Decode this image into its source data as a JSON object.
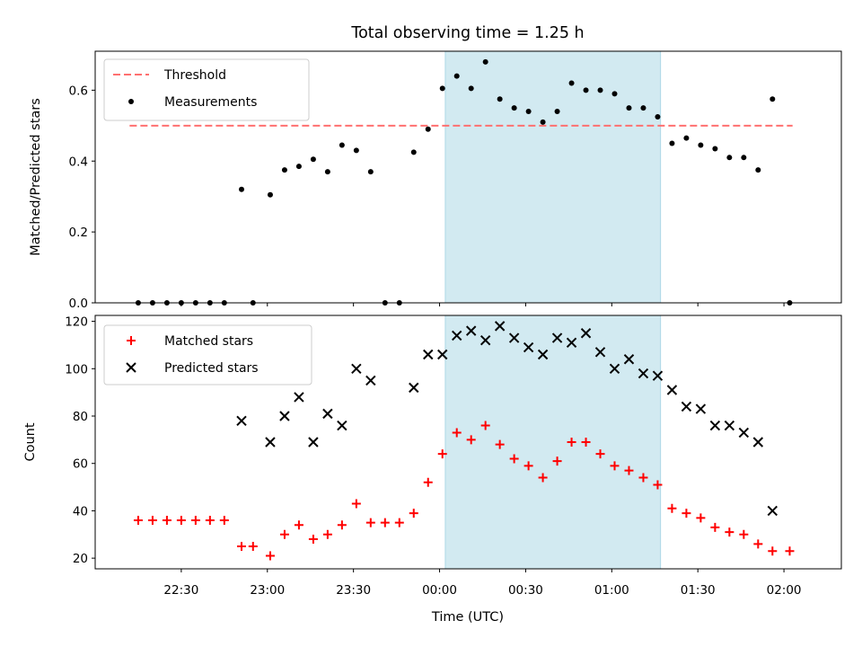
{
  "chart_data": {
    "type": "scatter",
    "title": "Total observing time = 1.25 h",
    "xlabel": "Time (UTC)",
    "x_tick_labels": [
      "22:30",
      "23:00",
      "23:30",
      "00:00",
      "00:30",
      "01:00",
      "01:30",
      "02:00"
    ],
    "x_ticks": [
      "22:30",
      "23:00",
      "23:30",
      "00:00",
      "00:30",
      "01:00",
      "01:30",
      "02:00"
    ],
    "x": [
      "22:15",
      "22:20",
      "22:25",
      "22:30",
      "22:35",
      "22:40",
      "22:45",
      "22:51",
      "22:55",
      "23:01",
      "23:06",
      "23:11",
      "23:16",
      "23:21",
      "23:26",
      "23:31",
      "23:36",
      "23:41",
      "23:46",
      "23:51",
      "23:56",
      "00:01",
      "00:06",
      "00:11",
      "00:16",
      "00:21",
      "00:26",
      "00:31",
      "00:36",
      "00:41",
      "00:46",
      "00:51",
      "00:56",
      "01:01",
      "01:06",
      "01:11",
      "01:16",
      "01:21",
      "01:26",
      "01:31",
      "01:36",
      "01:41",
      "01:46",
      "01:51",
      "01:56",
      "02:02"
    ],
    "shaded_interval": [
      "00:02",
      "01:17"
    ],
    "shade_color": "#add8e6",
    "panels": [
      {
        "ylabel": "Matched/Predicted stars",
        "ylim": [
          0,
          0.71
        ],
        "y_ticks": [
          0,
          0.2,
          0.4,
          0.6
        ],
        "y_tick_labels": [
          "0.0",
          "0.2",
          "0.4",
          "0.6"
        ],
        "legend_position": "upper-left",
        "threshold": {
          "name": "Threshold",
          "value": 0.5,
          "x_range": [
            "22:12",
            "02:03"
          ],
          "color": "#ff7070"
        },
        "series": [
          {
            "name": "Measurements",
            "marker": "dot",
            "color": "#000000",
            "values": [
              0,
              0,
              0,
              0,
              0,
              0,
              0,
              0.32,
              0,
              0.305,
              0.375,
              0.385,
              0.405,
              0.37,
              0.445,
              0.43,
              0.37,
              0,
              0,
              0.425,
              0.49,
              0.605,
              0.64,
              0.605,
              0.68,
              0.575,
              0.55,
              0.54,
              0.51,
              0.54,
              0.62,
              0.6,
              0.6,
              0.59,
              0.55,
              0.55,
              0.525,
              0.45,
              0.465,
              0.445,
              0.435,
              0.41,
              0.41,
              0.375,
              0.575,
              0
            ]
          }
        ]
      },
      {
        "ylabel": "Count",
        "ylim": [
          15.5,
          122.5
        ],
        "y_ticks": [
          20,
          40,
          60,
          80,
          100,
          120
        ],
        "y_tick_labels": [
          "20",
          "40",
          "60",
          "80",
          "100",
          "120"
        ],
        "legend_position": "upper-left",
        "series": [
          {
            "name": "Matched stars",
            "marker": "plus",
            "color": "#ff0000",
            "values": [
              36,
              36,
              36,
              36,
              36,
              36,
              36,
              25,
              25,
              21,
              30,
              34,
              28,
              30,
              34,
              43,
              35,
              35,
              35,
              39,
              52,
              64,
              73,
              70,
              76,
              68,
              62,
              59,
              54,
              61,
              69,
              69,
              64,
              59,
              57,
              54,
              51,
              41,
              39,
              37,
              33,
              31,
              30,
              26,
              23,
              23
            ]
          },
          {
            "name": "Predicted stars",
            "marker": "x",
            "color": "#000000",
            "values": [
              null,
              null,
              null,
              null,
              null,
              null,
              null,
              78,
              null,
              69,
              80,
              88,
              69,
              81,
              76,
              100,
              95,
              null,
              null,
              92,
              106,
              106,
              114,
              116,
              112,
              118,
              113,
              109,
              106,
              113,
              111,
              115,
              107,
              100,
              104,
              98,
              97,
              91,
              84,
              83,
              76,
              76,
              73,
              69,
              40,
              null
            ]
          }
        ]
      }
    ]
  }
}
